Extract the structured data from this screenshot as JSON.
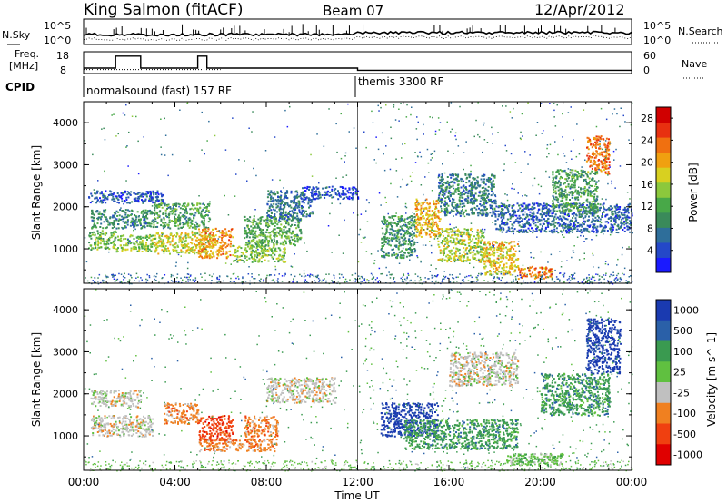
{
  "header": {
    "station": "King Salmon (fitACF)",
    "beam": "Beam 07",
    "date": "12/Apr/2012"
  },
  "top_panels": {
    "nsky_label": "N.Sky",
    "nsearch_label": "N.Search",
    "noise_ticks": [
      "10^5",
      "10^0"
    ],
    "freq_label_1": "Freq.",
    "freq_label_2": "[MHz]",
    "freq_ticks": [
      "18",
      "8"
    ],
    "nave_label": "Nave",
    "nave_ticks": [
      "60",
      "0"
    ],
    "cpid_label": "CPID",
    "cpid_modes": [
      {
        "label": "normalsound (fast) 157 RF",
        "start_hour": 0
      },
      {
        "label": "themis 3300 RF",
        "start_hour": 12
      }
    ]
  },
  "chart_data": [
    {
      "type": "heatmap",
      "title": "",
      "xlabel": "Time UT",
      "ylabel": "Slant Range [km]",
      "colorbar_label": "Power [dB]",
      "x_range_hours": [
        0,
        24
      ],
      "y_range_km": [
        180,
        4500
      ],
      "y_ticks": [
        "1000",
        "2000",
        "3000",
        "4000"
      ],
      "colorbar_ticks": [
        "4",
        "8",
        "12",
        "16",
        "20",
        "24",
        "28"
      ],
      "colorbar_range": [
        0,
        30
      ],
      "colorbar_colors": [
        "#1a1aff",
        "#2448c8",
        "#2e6e9a",
        "#3a8a5a",
        "#48a848",
        "#8cc83c",
        "#d8d020",
        "#f0a010",
        "#f07010",
        "#e83010",
        "#d00000"
      ],
      "regions": [
        {
          "t": [
            0.2,
            1.4
          ],
          "r": [
            1000,
            1450
          ],
          "v": 13
        },
        {
          "t": [
            1.4,
            3.0
          ],
          "r": [
            950,
            1350
          ],
          "v": 15
        },
        {
          "t": [
            0.3,
            3.0
          ],
          "r": [
            1500,
            1950
          ],
          "v": 9
        },
        {
          "t": [
            0.2,
            3.5
          ],
          "r": [
            2100,
            2400
          ],
          "v": 5
        },
        {
          "t": [
            3.0,
            5.5
          ],
          "r": [
            900,
            1400
          ],
          "v": 17
        },
        {
          "t": [
            3.0,
            5.5
          ],
          "r": [
            1500,
            2100
          ],
          "v": 11
        },
        {
          "t": [
            5.0,
            6.5
          ],
          "r": [
            800,
            1500
          ],
          "v": 21
        },
        {
          "t": [
            6.5,
            8.8
          ],
          "r": [
            700,
            1100
          ],
          "v": 14
        },
        {
          "t": [
            7.0,
            9.5
          ],
          "r": [
            1100,
            1800
          ],
          "v": 12
        },
        {
          "t": [
            8.0,
            10.0
          ],
          "r": [
            1700,
            2400
          ],
          "v": 7
        },
        {
          "t": [
            9.5,
            12.0
          ],
          "r": [
            2200,
            2500
          ],
          "v": 5
        },
        {
          "t": [
            13.0,
            14.5
          ],
          "r": [
            800,
            1800
          ],
          "v": 10
        },
        {
          "t": [
            14.5,
            15.6
          ],
          "r": [
            1300,
            2200
          ],
          "v": 20
        },
        {
          "t": [
            15.5,
            17.5
          ],
          "r": [
            700,
            1500
          ],
          "v": 16
        },
        {
          "t": [
            15.5,
            18.0
          ],
          "r": [
            1800,
            2800
          ],
          "v": 8
        },
        {
          "t": [
            17.5,
            19.0
          ],
          "r": [
            400,
            1200
          ],
          "v": 19
        },
        {
          "t": [
            19.0,
            20.5
          ],
          "r": [
            300,
            600
          ],
          "v": 22
        },
        {
          "t": [
            18.0,
            24.0
          ],
          "r": [
            1400,
            2100
          ],
          "v": 6
        },
        {
          "t": [
            20.5,
            22.5
          ],
          "r": [
            1900,
            2900
          ],
          "v": 11
        },
        {
          "t": [
            22.0,
            23.0
          ],
          "r": [
            2800,
            3700
          ],
          "v": 23
        }
      ]
    },
    {
      "type": "heatmap",
      "title": "",
      "xlabel": "Time UT",
      "ylabel": "Slant Range [km]",
      "colorbar_label": "Velocity [m s^-1]",
      "x_range_hours": [
        0,
        24
      ],
      "y_range_km": [
        180,
        4500
      ],
      "y_ticks": [
        "1000",
        "2000",
        "3000",
        "4000"
      ],
      "colorbar_ticks": [
        "1000",
        "500",
        "100",
        "25",
        "-25",
        "-100",
        "-500",
        "-1000"
      ],
      "colorbar_colors": [
        "#1a3ab0",
        "#2a60a8",
        "#3a9a50",
        "#60c040",
        "#c0c0c0",
        "#f08020",
        "#f04010",
        "#e00000"
      ],
      "regions": [
        {
          "t": [
            0.3,
            3.0
          ],
          "r": [
            1000,
            1500
          ],
          "c": 4
        },
        {
          "t": [
            0.3,
            2.5
          ],
          "r": [
            1700,
            2100
          ],
          "c": 4
        },
        {
          "t": [
            3.5,
            5.0
          ],
          "r": [
            1300,
            1800
          ],
          "c": 5
        },
        {
          "t": [
            5.0,
            6.5
          ],
          "r": [
            900,
            1500
          ],
          "c": 6
        },
        {
          "t": [
            5.0,
            8.5
          ],
          "r": [
            650,
            950
          ],
          "c": 5
        },
        {
          "t": [
            7.0,
            8.5
          ],
          "r": [
            1000,
            1500
          ],
          "c": 5
        },
        {
          "t": [
            8.0,
            11.0
          ],
          "r": [
            1800,
            2400
          ],
          "c": 4
        },
        {
          "t": [
            13.0,
            15.5
          ],
          "r": [
            1000,
            1800
          ],
          "c": 0
        },
        {
          "t": [
            14.0,
            19.0
          ],
          "r": [
            700,
            1400
          ],
          "c": 2
        },
        {
          "t": [
            18.5,
            21.0
          ],
          "r": [
            300,
            600
          ],
          "c": 3
        },
        {
          "t": [
            20.0,
            23.0
          ],
          "r": [
            1500,
            2500
          ],
          "c": 2
        },
        {
          "t": [
            22.0,
            23.5
          ],
          "r": [
            2500,
            3800
          ],
          "c": 0
        },
        {
          "t": [
            16.0,
            19.0
          ],
          "r": [
            2200,
            3000
          ],
          "c": 4
        }
      ]
    }
  ],
  "x_ticks": [
    "00:00",
    "04:00",
    "08:00",
    "12:00",
    "16:00",
    "20:00",
    "00:00"
  ],
  "x_axis_title": "Time UT"
}
